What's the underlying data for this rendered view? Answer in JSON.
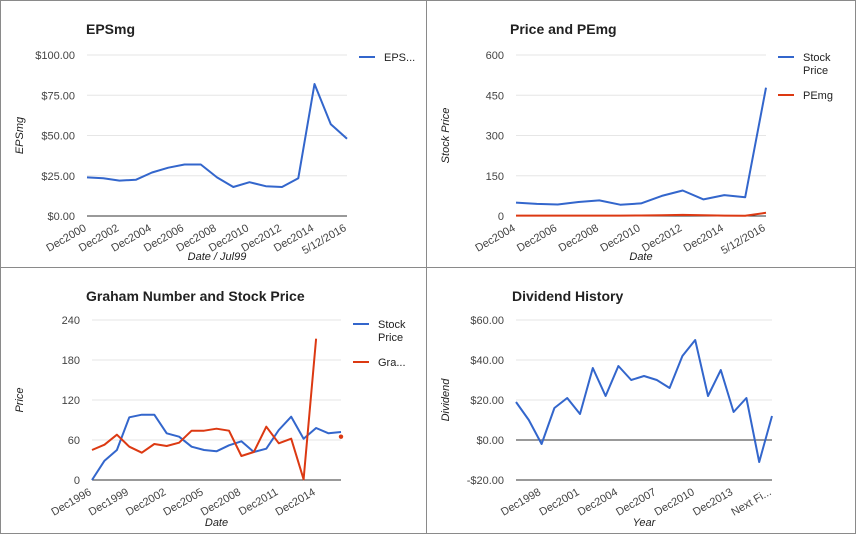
{
  "colors": {
    "blue": "#3366cc",
    "red": "#dc3912",
    "grid": "#e6e6e6",
    "zero_line": "#333333",
    "text": "#222222",
    "tick": "#444444"
  },
  "chart_data": [
    {
      "type": "line",
      "title": "EPSmg",
      "ylabel": "EPSmg",
      "xlabel": "Date / Jul99",
      "ylim": [
        0,
        100
      ],
      "y_ticks": [
        {
          "value": 0,
          "label": "$0.00"
        },
        {
          "value": 25,
          "label": "$25.00"
        },
        {
          "value": 50,
          "label": "$50.00"
        },
        {
          "value": 75,
          "label": "$75.00"
        },
        {
          "value": 100,
          "label": "$100.00"
        }
      ],
      "categories": [
        "Dec2000",
        "",
        "Dec2002",
        "",
        "Dec2004",
        "",
        "Dec2006",
        "",
        "Dec2008",
        "",
        "Dec2010",
        "",
        "Dec2012",
        "",
        "Dec2014",
        "",
        "5/12/2016"
      ],
      "x_ticks": [
        {
          "index": 0,
          "label": "Dec2000"
        },
        {
          "index": 2,
          "label": "Dec2002"
        },
        {
          "index": 4,
          "label": "Dec2004"
        },
        {
          "index": 6,
          "label": "Dec2006"
        },
        {
          "index": 8,
          "label": "Dec2008"
        },
        {
          "index": 10,
          "label": "Dec2010"
        },
        {
          "index": 12,
          "label": "Dec2012"
        },
        {
          "index": 14,
          "label": "Dec2014"
        },
        {
          "index": 16,
          "label": "5/12/2016"
        }
      ],
      "zero_line": false,
      "series": [
        {
          "name": "EPS...",
          "color": "blue",
          "values": [
            24,
            23.5,
            22,
            22.5,
            27,
            30,
            32,
            32,
            24,
            18,
            21,
            18.5,
            18,
            23.5,
            82,
            57,
            48
          ]
        }
      ],
      "legend": {
        "position": "right",
        "entries": [
          {
            "lines": [
              "EPS..."
            ],
            "color": "blue"
          }
        ]
      }
    },
    {
      "type": "line",
      "title": "Price and PEmg",
      "ylabel": "Stock Price",
      "xlabel": "Date",
      "ylim": [
        0,
        600
      ],
      "y_ticks": [
        {
          "value": 0,
          "label": "0"
        },
        {
          "value": 150,
          "label": "150"
        },
        {
          "value": 300,
          "label": "300"
        },
        {
          "value": 450,
          "label": "450"
        },
        {
          "value": 600,
          "label": "600"
        }
      ],
      "categories": [
        "Dec2004",
        "",
        "Dec2006",
        "",
        "Dec2008",
        "",
        "Dec2010",
        "",
        "Dec2012",
        "",
        "Dec2014",
        "",
        "5/12/2016"
      ],
      "x_ticks": [
        {
          "index": 0,
          "label": "Dec2004"
        },
        {
          "index": 2,
          "label": "Dec2006"
        },
        {
          "index": 4,
          "label": "Dec2008"
        },
        {
          "index": 6,
          "label": "Dec2010"
        },
        {
          "index": 8,
          "label": "Dec2012"
        },
        {
          "index": 10,
          "label": "Dec2014"
        },
        {
          "index": 12,
          "label": "5/12/2016"
        }
      ],
      "zero_line": false,
      "series": [
        {
          "name": "Stock Price",
          "color": "blue",
          "values": [
            50,
            45,
            43,
            52,
            58,
            42,
            47,
            75,
            95,
            62,
            78,
            70,
            478
          ]
        },
        {
          "name": "PEmg",
          "color": "red",
          "values": [
            1.5,
            1.5,
            1.5,
            1.5,
            1.5,
            1.5,
            2,
            3,
            4,
            3,
            1.5,
            1,
            12
          ]
        }
      ],
      "legend": {
        "position": "right",
        "entries": [
          {
            "lines": [
              "Stock",
              "Price"
            ],
            "color": "blue"
          },
          {
            "lines": [
              "PEmg"
            ],
            "color": "red"
          }
        ]
      }
    },
    {
      "type": "line",
      "title": "Graham Number and Stock Price",
      "ylabel": "Price",
      "xlabel": "Date",
      "ylim": [
        0,
        240
      ],
      "y_ticks": [
        {
          "value": 0,
          "label": "0"
        },
        {
          "value": 60,
          "label": "60"
        },
        {
          "value": 120,
          "label": "120"
        },
        {
          "value": 180,
          "label": "180"
        },
        {
          "value": 240,
          "label": "240"
        }
      ],
      "categories": [
        "Dec1996",
        "",
        "",
        "Dec1999",
        "",
        "",
        "Dec2002",
        "",
        "",
        "Dec2005",
        "",
        "",
        "Dec2008",
        "",
        "",
        "Dec2011",
        "",
        "",
        "Dec2014",
        "",
        ""
      ],
      "x_ticks": [
        {
          "index": 0,
          "label": "Dec1996"
        },
        {
          "index": 3,
          "label": "Dec1999"
        },
        {
          "index": 6,
          "label": "Dec2002"
        },
        {
          "index": 9,
          "label": "Dec2005"
        },
        {
          "index": 12,
          "label": "Dec2008"
        },
        {
          "index": 15,
          "label": "Dec2011"
        },
        {
          "index": 18,
          "label": "Dec2014"
        }
      ],
      "zero_line": false,
      "series": [
        {
          "name": "Stock Price",
          "color": "blue",
          "values": [
            0,
            29,
            45,
            94,
            98,
            98,
            70,
            65,
            50,
            45,
            43,
            52,
            58,
            42,
            47,
            75,
            95,
            62,
            78,
            70,
            72
          ]
        },
        {
          "name": "Gra...",
          "color": "red",
          "values": [
            45,
            53,
            68,
            50,
            41,
            54,
            51,
            56,
            74,
            74,
            77,
            74,
            36,
            42,
            80,
            55,
            62,
            1,
            212,
            null,
            65
          ]
        }
      ],
      "legend": {
        "position": "right",
        "entries": [
          {
            "lines": [
              "Stock",
              "Price"
            ],
            "color": "blue"
          },
          {
            "lines": [
              "Gra..."
            ],
            "color": "red"
          }
        ]
      }
    },
    {
      "type": "line",
      "title": "Dividend History",
      "ylabel": "Dividend",
      "xlabel": "Year",
      "ylim": [
        -20,
        60
      ],
      "y_ticks": [
        {
          "value": -20,
          "label": "-$20.00"
        },
        {
          "value": 0,
          "label": "$0.00"
        },
        {
          "value": 20,
          "label": "$20.00"
        },
        {
          "value": 40,
          "label": "$40.00"
        },
        {
          "value": 60,
          "label": "$60.00"
        }
      ],
      "categories": [
        "",
        "",
        "Dec1998",
        "",
        "",
        "Dec2001",
        "",
        "",
        "Dec2004",
        "",
        "",
        "Dec2007",
        "",
        "",
        "Dec2010",
        "",
        "",
        "Dec2013",
        "",
        "",
        "Next Fi..."
      ],
      "x_ticks": [
        {
          "index": 2,
          "label": "Dec1998"
        },
        {
          "index": 5,
          "label": "Dec2001"
        },
        {
          "index": 8,
          "label": "Dec2004"
        },
        {
          "index": 11,
          "label": "Dec2007"
        },
        {
          "index": 14,
          "label": "Dec2010"
        },
        {
          "index": 17,
          "label": "Dec2013"
        },
        {
          "index": 20,
          "label": "Next Fi..."
        }
      ],
      "zero_line": true,
      "series": [
        {
          "name": "",
          "color": "blue",
          "values": [
            19,
            10,
            -2,
            16,
            21,
            13,
            36,
            22,
            37,
            30,
            32,
            30,
            26,
            42,
            50,
            22,
            35,
            14,
            21,
            -11,
            12
          ]
        }
      ],
      "legend": null
    }
  ]
}
